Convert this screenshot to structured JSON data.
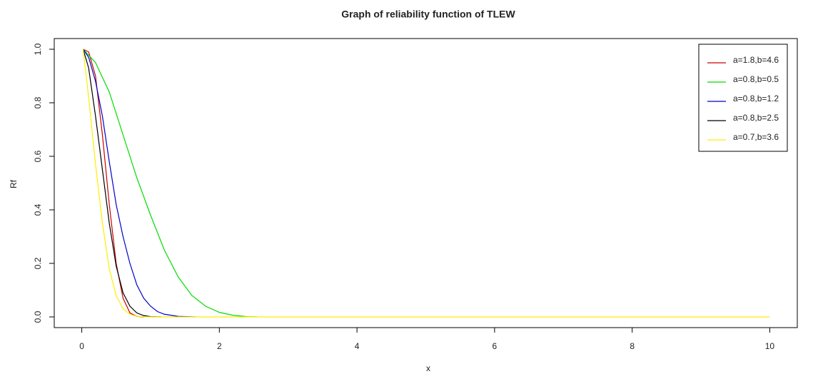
{
  "chart_data": {
    "type": "line",
    "title": "Graph of reliability function of TLEW",
    "x_label": "x",
    "y_label": "Rf",
    "xlim": [
      -0.4,
      10.4
    ],
    "ylim": [
      -0.04,
      1.04
    ],
    "xticks": [
      0,
      2,
      4,
      6,
      8,
      10
    ],
    "yticks": [
      {
        "value": 0,
        "label": "0.0"
      },
      {
        "value": 0.2,
        "label": "0.2"
      },
      {
        "value": 0.4,
        "label": "0.4"
      },
      {
        "value": 0.6,
        "label": "0.6"
      },
      {
        "value": 0.8,
        "label": "0.8"
      },
      {
        "value": 1,
        "label": "1.0"
      }
    ],
    "legend": "topright",
    "series": [
      {
        "name": "a=1.8,b=4.6",
        "color": "#cc0000",
        "x": [
          0.02,
          0.1,
          0.2,
          0.3,
          0.4,
          0.5,
          0.6,
          0.7,
          0.8,
          0.9
        ],
        "values": [
          1.0,
          0.99,
          0.9,
          0.68,
          0.42,
          0.2,
          0.07,
          0.015,
          0.002,
          0
        ]
      },
      {
        "name": "a=0.8,b=0.5",
        "color": "#00dd00",
        "x": [
          0.02,
          0.2,
          0.4,
          0.6,
          0.8,
          1.0,
          1.2,
          1.4,
          1.6,
          1.8,
          2.0,
          2.2,
          2.4,
          2.55
        ],
        "values": [
          1.0,
          0.95,
          0.84,
          0.68,
          0.52,
          0.38,
          0.25,
          0.15,
          0.08,
          0.04,
          0.017,
          0.006,
          0.001,
          0
        ]
      },
      {
        "name": "a=0.8,b=1.2",
        "color": "#0000cc",
        "x": [
          0.02,
          0.1,
          0.2,
          0.3,
          0.4,
          0.5,
          0.6,
          0.7,
          0.8,
          0.9,
          1.0,
          1.1,
          1.2,
          1.4,
          1.65
        ],
        "values": [
          1.0,
          0.97,
          0.88,
          0.75,
          0.58,
          0.42,
          0.3,
          0.2,
          0.12,
          0.07,
          0.04,
          0.02,
          0.01,
          0.002,
          0
        ]
      },
      {
        "name": "a=0.8,b=2.5",
        "color": "#000000",
        "x": [
          0.02,
          0.1,
          0.2,
          0.3,
          0.4,
          0.5,
          0.6,
          0.7,
          0.8,
          0.9,
          1.0,
          1.15
        ],
        "values": [
          1.0,
          0.93,
          0.75,
          0.55,
          0.35,
          0.19,
          0.09,
          0.04,
          0.015,
          0.005,
          0.001,
          0
        ]
      },
      {
        "name": "a=0.7,b=3.6",
        "color": "#ffee00",
        "x": [
          0.02,
          0.1,
          0.2,
          0.3,
          0.4,
          0.5,
          0.6,
          0.7,
          0.8,
          1.0,
          10
        ],
        "values": [
          1.0,
          0.82,
          0.57,
          0.35,
          0.18,
          0.08,
          0.03,
          0.01,
          0.002,
          0,
          0
        ]
      }
    ]
  }
}
